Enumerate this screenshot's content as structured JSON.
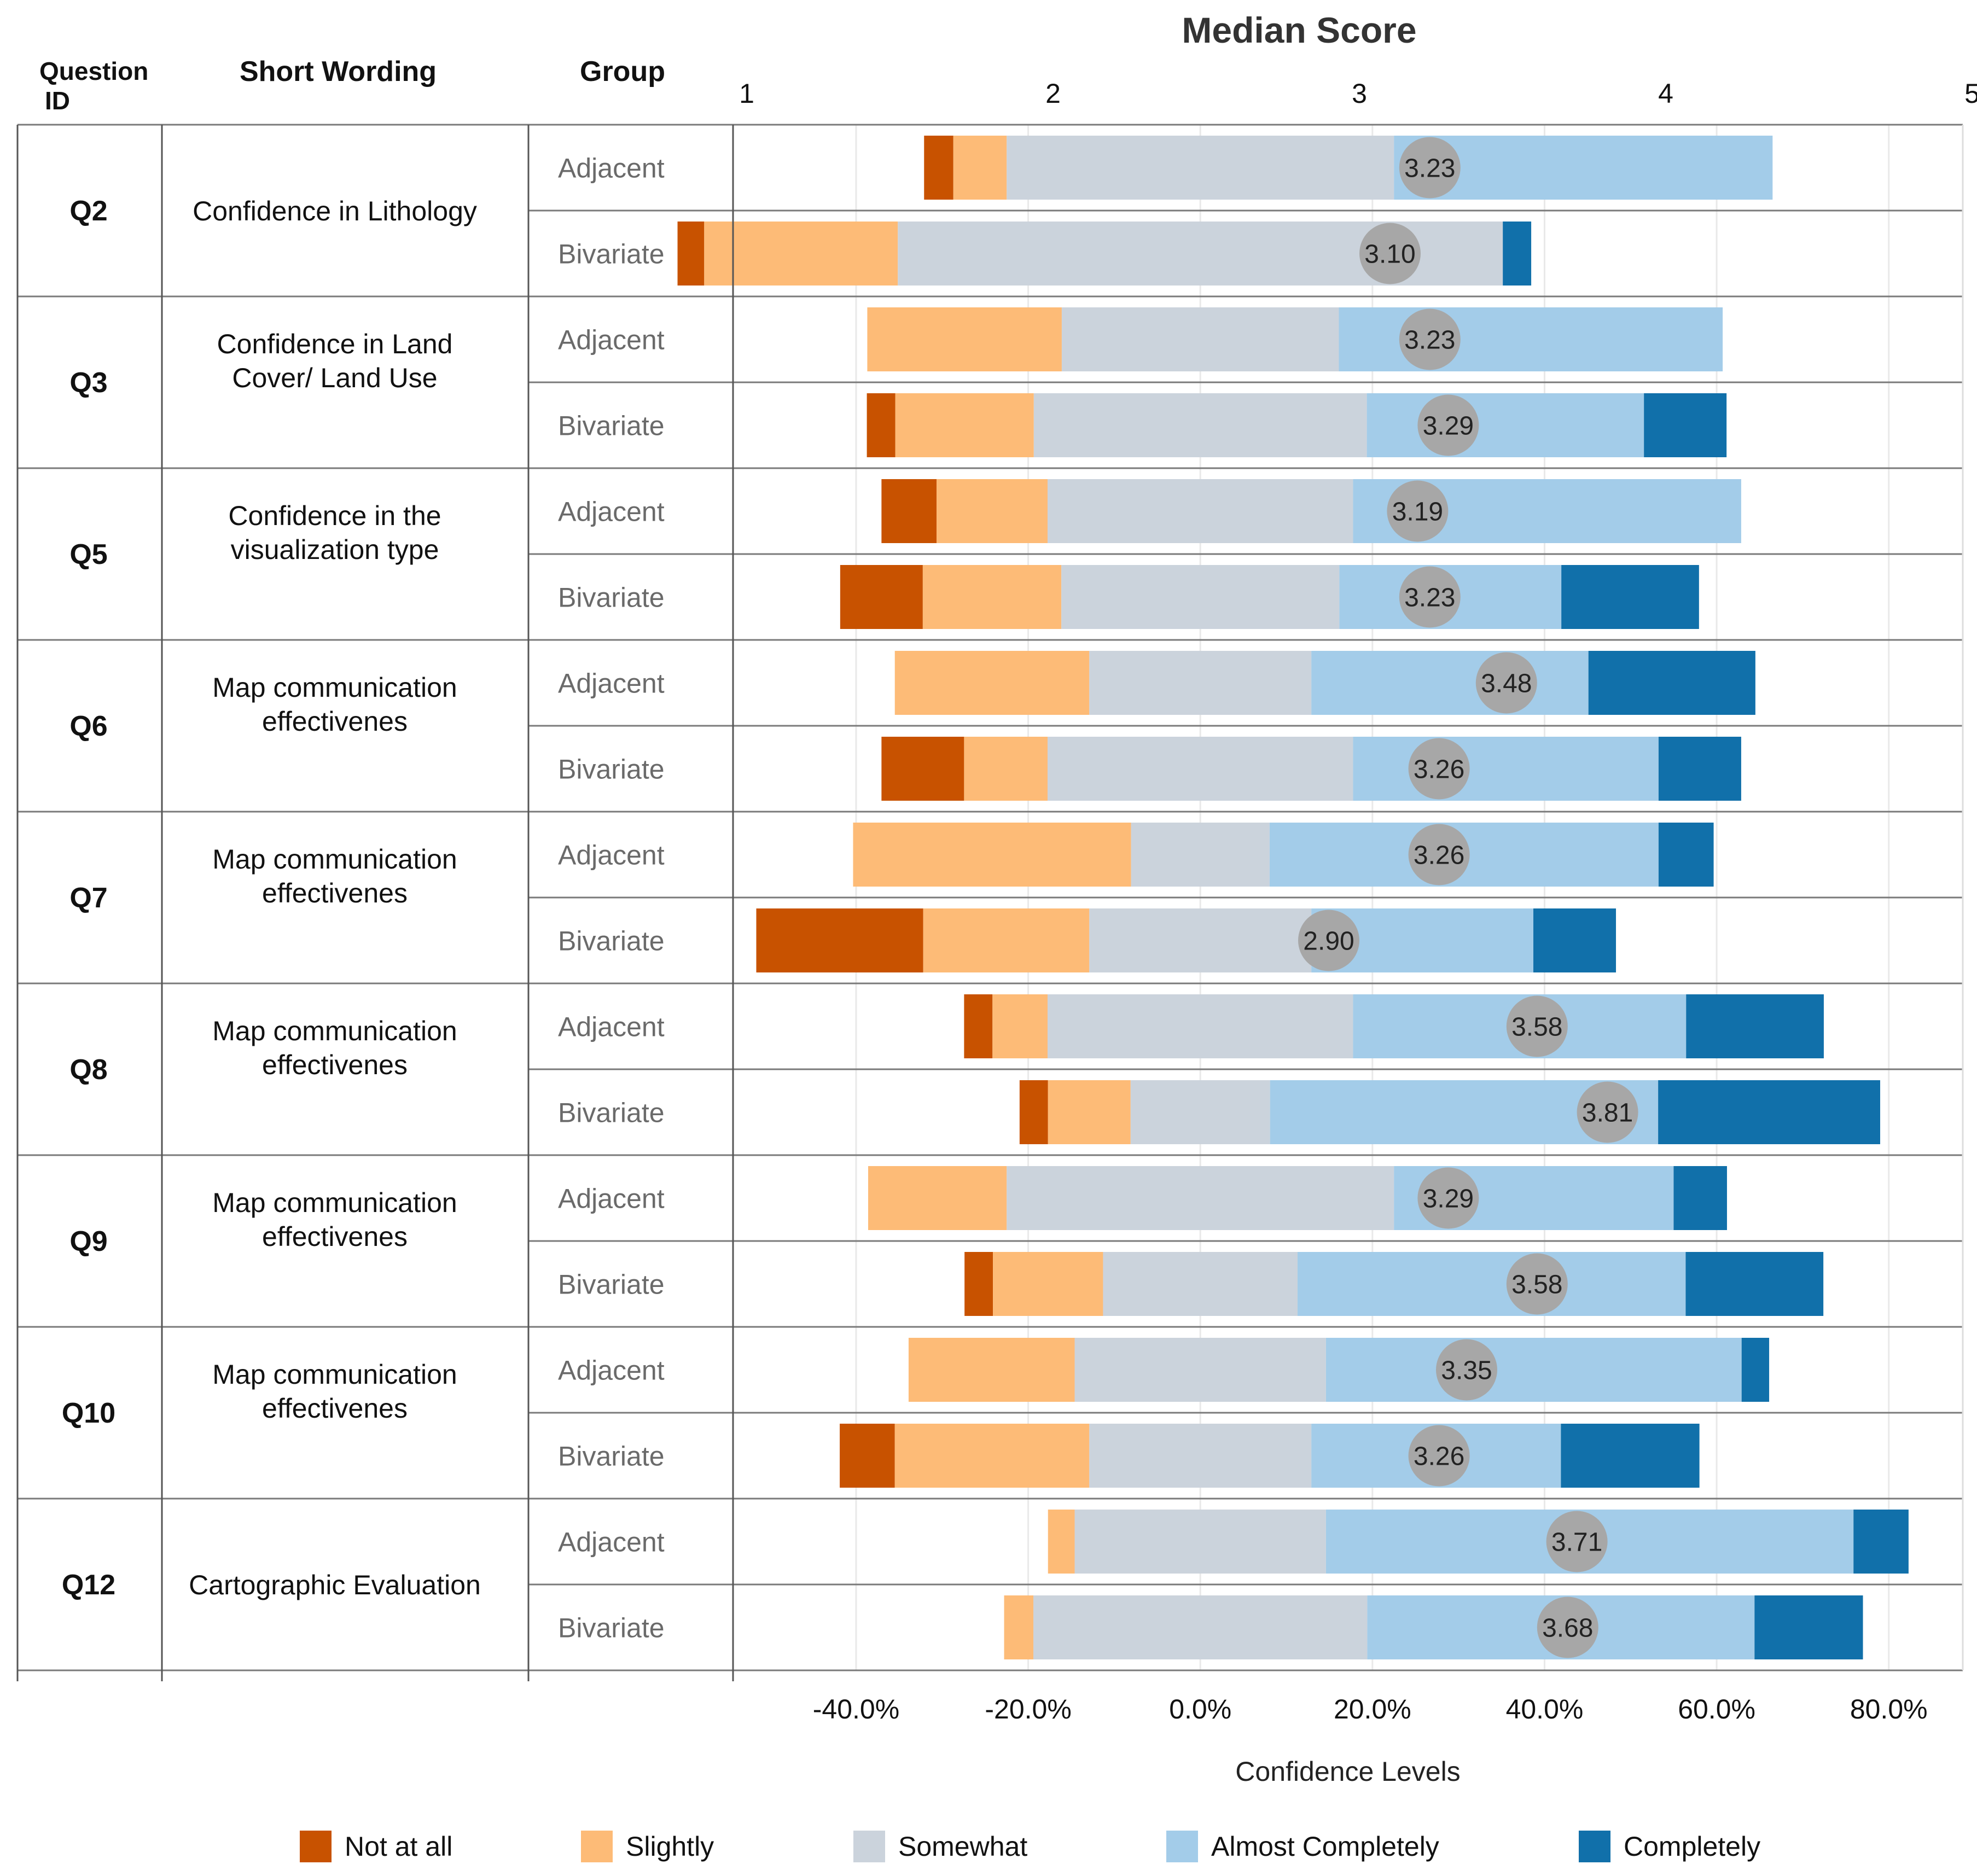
{
  "chart_data": {
    "type": "bar",
    "subtype": "diverging-stacked-bar",
    "title": "Median Score",
    "columns": {
      "question_id": "Question ID",
      "short_wording": "Short Wording",
      "group": "Group"
    },
    "xlabel": "Confidence Levels",
    "xlim": [
      -54.3,
      88.6
    ],
    "x_ticks": [
      -40,
      -20,
      0,
      20,
      40,
      60,
      80
    ],
    "x_tick_labels": [
      "-40.0%",
      "-20.0%",
      "0.0%",
      "20.0%",
      "40.0%",
      "60.0%",
      "80.0%"
    ],
    "median_axis": {
      "ticks": [
        "1",
        "2",
        "3",
        "4",
        "5"
      ],
      "values": [
        1,
        2,
        3,
        4,
        5
      ]
    },
    "categories": [
      "Not at all",
      "Slightly",
      "Somewhat",
      "Almost Completely",
      "Completely"
    ],
    "colors": [
      "#C85200",
      "#FDBB77",
      "#CBD3DC",
      "#A3CCE9",
      "#1170AA"
    ],
    "median_circle_color": "#A7A7A7",
    "questions": [
      {
        "id": "Q2",
        "wording": [
          "Confidence in Lithology"
        ],
        "rows": [
          {
            "group": "Adjacent",
            "segments": [
              3.4,
              6.2,
              45.0,
              44.0,
              0
            ],
            "median": "3.23",
            "median_value": 3.23
          },
          {
            "group": "Bivariate",
            "segments": [
              3.1,
              22.5,
              70.3,
              0,
              3.3
            ],
            "median": "3.10",
            "median_value": 3.1
          }
        ]
      },
      {
        "id": "Q3",
        "wording": [
          "Confidence in Land",
          "Cover/ Land Use"
        ],
        "rows": [
          {
            "group": "Adjacent",
            "segments": [
              0,
              22.6,
              32.2,
              44.6,
              0
            ],
            "median": "3.23",
            "median_value": 3.23
          },
          {
            "group": "Bivariate",
            "segments": [
              3.3,
              16.1,
              38.7,
              32.2,
              9.6
            ],
            "median": "3.29",
            "median_value": 3.29
          }
        ]
      },
      {
        "id": "Q5",
        "wording": [
          "Confidence in the",
          "visualization type"
        ],
        "rows": [
          {
            "group": "Adjacent",
            "segments": [
              6.4,
              12.9,
              35.5,
              45.1,
              0
            ],
            "median": "3.19",
            "median_value": 3.19
          },
          {
            "group": "Bivariate",
            "segments": [
              9.6,
              16.1,
              32.3,
              25.8,
              16.0
            ],
            "median": "3.23",
            "median_value": 3.23
          }
        ]
      },
      {
        "id": "Q6",
        "wording": [
          "Map communication",
          "effectivenes"
        ],
        "rows": [
          {
            "group": "Adjacent",
            "segments": [
              0,
              22.6,
              25.8,
              32.2,
              19.4
            ],
            "median": "3.48",
            "median_value": 3.48
          },
          {
            "group": "Bivariate",
            "segments": [
              9.6,
              9.7,
              35.5,
              35.5,
              9.6
            ],
            "median": "3.26",
            "median_value": 3.26
          }
        ]
      },
      {
        "id": "Q7",
        "wording": [
          "Map communication",
          "effectivenes"
        ],
        "rows": [
          {
            "group": "Adjacent",
            "segments": [
              0,
              32.3,
              16.1,
              45.2,
              6.4
            ],
            "median": "3.26",
            "median_value": 3.26
          },
          {
            "group": "Bivariate",
            "segments": [
              19.4,
              19.3,
              25.8,
              25.8,
              9.6
            ],
            "median": "2.90",
            "median_value": 2.9
          }
        ]
      },
      {
        "id": "Q8",
        "wording": [
          "Map communication",
          "effectivenes"
        ],
        "rows": [
          {
            "group": "Adjacent",
            "segments": [
              3.3,
              6.4,
              35.5,
              38.7,
              16.0
            ],
            "median": "3.58",
            "median_value": 3.58
          },
          {
            "group": "Bivariate",
            "segments": [
              3.3,
              9.6,
              16.2,
              45.1,
              25.8
            ],
            "median": "3.81",
            "median_value": 3.81
          }
        ]
      },
      {
        "id": "Q9",
        "wording": [
          "Map communication",
          "effectivenes"
        ],
        "rows": [
          {
            "group": "Adjacent",
            "segments": [
              0,
              16.1,
              45.0,
              32.5,
              6.2
            ],
            "median": "3.29",
            "median_value": 3.29
          },
          {
            "group": "Bivariate",
            "segments": [
              3.3,
              12.8,
              22.6,
              45.1,
              16.0
            ],
            "median": "3.58",
            "median_value": 3.58
          }
        ]
      },
      {
        "id": "Q10",
        "wording": [
          "Map communication",
          "effectivenes"
        ],
        "rows": [
          {
            "group": "Adjacent",
            "segments": [
              0,
              19.3,
              29.2,
              48.3,
              3.2
            ],
            "median": "3.35",
            "median_value": 3.35
          },
          {
            "group": "Bivariate",
            "segments": [
              6.4,
              22.6,
              25.8,
              29.0,
              16.1
            ],
            "median": "3.26",
            "median_value": 3.26
          }
        ]
      },
      {
        "id": "Q12",
        "wording": [
          "Cartographic Evaluation"
        ],
        "rows": [
          {
            "group": "Adjacent",
            "segments": [
              0,
              3.1,
              29.2,
              61.3,
              6.4
            ],
            "median": "3.71",
            "median_value": 3.71
          },
          {
            "group": "Bivariate",
            "segments": [
              0,
              3.4,
              38.8,
              45.0,
              12.6
            ],
            "median": "3.68",
            "median_value": 3.68
          }
        ]
      }
    ]
  }
}
